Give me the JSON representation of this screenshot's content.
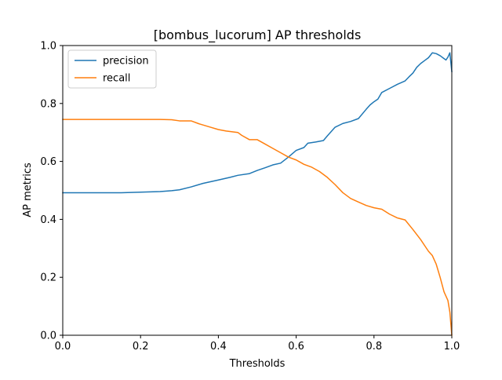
{
  "chart_data": {
    "type": "line",
    "title": "[bombus_lucorum] AP thresholds",
    "xlabel": "Thresholds",
    "ylabel": "AP metrics",
    "xlim": [
      0.0,
      1.0
    ],
    "ylim": [
      0.0,
      1.0
    ],
    "xticks": [
      "0.0",
      "0.2",
      "0.4",
      "0.6",
      "0.8",
      "1.0"
    ],
    "yticks": [
      "0.0",
      "0.2",
      "0.4",
      "0.6",
      "0.8",
      "1.0"
    ],
    "grid": false,
    "legend_position": "top-left",
    "series": [
      {
        "name": "precision",
        "color": "#1f77b4",
        "x": [
          0.0,
          0.05,
          0.1,
          0.15,
          0.2,
          0.25,
          0.28,
          0.3,
          0.33,
          0.36,
          0.4,
          0.43,
          0.45,
          0.48,
          0.5,
          0.52,
          0.54,
          0.56,
          0.58,
          0.6,
          0.62,
          0.63,
          0.65,
          0.67,
          0.68,
          0.7,
          0.72,
          0.74,
          0.76,
          0.78,
          0.79,
          0.8,
          0.81,
          0.82,
          0.84,
          0.86,
          0.88,
          0.89,
          0.9,
          0.91,
          0.92,
          0.93,
          0.94,
          0.95,
          0.96,
          0.97,
          0.98,
          0.985,
          0.99,
          0.995,
          1.0
        ],
        "y": [
          0.492,
          0.492,
          0.492,
          0.492,
          0.494,
          0.496,
          0.499,
          0.502,
          0.512,
          0.524,
          0.536,
          0.545,
          0.552,
          0.558,
          0.569,
          0.578,
          0.588,
          0.594,
          0.615,
          0.638,
          0.648,
          0.663,
          0.667,
          0.672,
          0.688,
          0.718,
          0.731,
          0.738,
          0.748,
          0.78,
          0.795,
          0.806,
          0.815,
          0.838,
          0.852,
          0.866,
          0.878,
          0.892,
          0.905,
          0.925,
          0.938,
          0.948,
          0.958,
          0.975,
          0.972,
          0.965,
          0.955,
          0.95,
          0.96,
          0.975,
          0.91
        ]
      },
      {
        "name": "recall",
        "color": "#ff7f0e",
        "x": [
          0.0,
          0.1,
          0.2,
          0.25,
          0.28,
          0.3,
          0.33,
          0.35,
          0.38,
          0.4,
          0.42,
          0.45,
          0.46,
          0.48,
          0.5,
          0.52,
          0.54,
          0.56,
          0.58,
          0.6,
          0.62,
          0.64,
          0.66,
          0.68,
          0.7,
          0.72,
          0.74,
          0.76,
          0.78,
          0.8,
          0.82,
          0.84,
          0.86,
          0.88,
          0.9,
          0.92,
          0.93,
          0.94,
          0.95,
          0.96,
          0.97,
          0.98,
          0.99,
          0.995,
          1.0
        ],
        "y": [
          0.745,
          0.745,
          0.745,
          0.745,
          0.744,
          0.74,
          0.74,
          0.73,
          0.718,
          0.71,
          0.705,
          0.7,
          0.69,
          0.675,
          0.675,
          0.66,
          0.645,
          0.63,
          0.615,
          0.605,
          0.59,
          0.58,
          0.565,
          0.545,
          0.52,
          0.492,
          0.472,
          0.46,
          0.448,
          0.44,
          0.435,
          0.418,
          0.405,
          0.398,
          0.365,
          0.33,
          0.31,
          0.29,
          0.275,
          0.245,
          0.2,
          0.15,
          0.12,
          0.08,
          0.0
        ]
      }
    ]
  }
}
